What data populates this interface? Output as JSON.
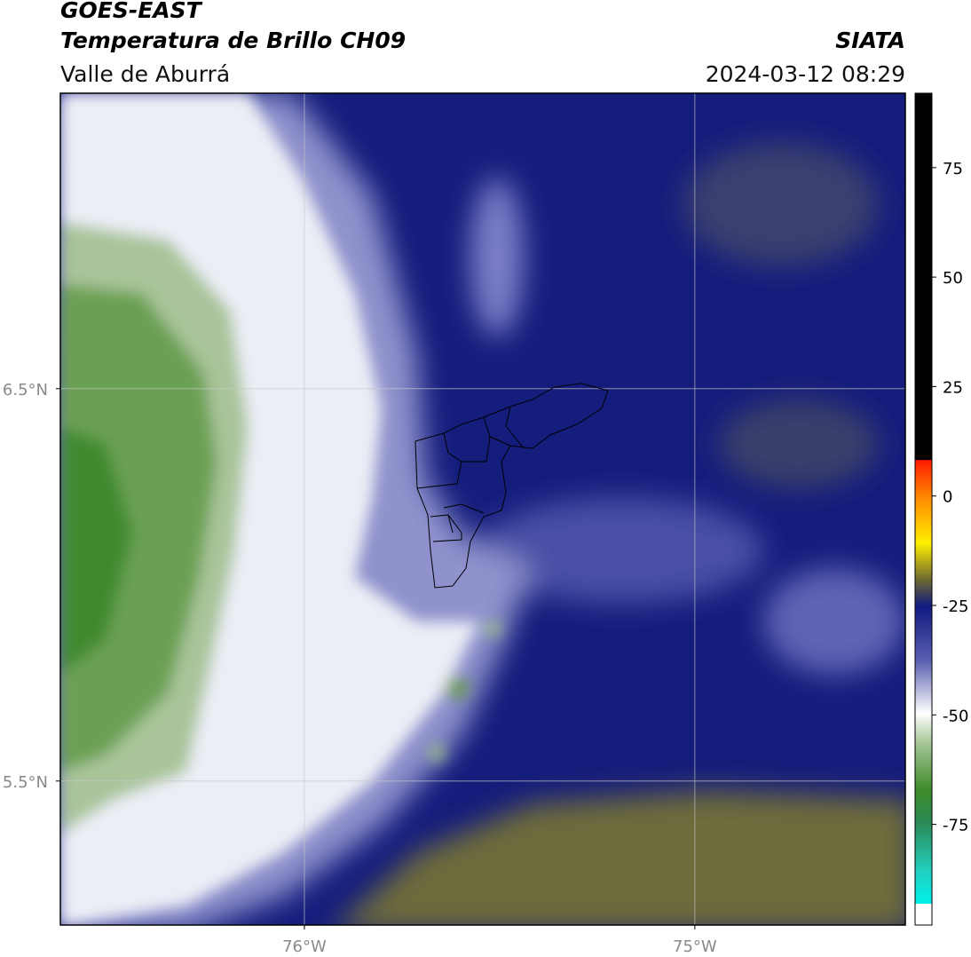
{
  "header": {
    "title": "GOES-EAST",
    "subtitle": "Temperatura de Brillo CH09",
    "region": "Valle de Aburrá",
    "source": "SIATA",
    "timestamp": "2024-03-12 08:29"
  },
  "map": {
    "xlim": [
      -76.625,
      -74.461
    ],
    "ylim": [
      5.133,
      7.253
    ],
    "xticks": [
      {
        "value": -76,
        "label": "76°W"
      },
      {
        "value": -75,
        "label": "75°W"
      }
    ],
    "yticks": [
      {
        "value": 6.5,
        "label": "6.5°N"
      },
      {
        "value": 5.5,
        "label": "5.5°N"
      }
    ],
    "grid": true
  },
  "colorbar": {
    "lim": [
      -98,
      92
    ],
    "ticks": [
      75,
      50,
      25,
      0,
      -25,
      -50,
      -75
    ]
  }
}
